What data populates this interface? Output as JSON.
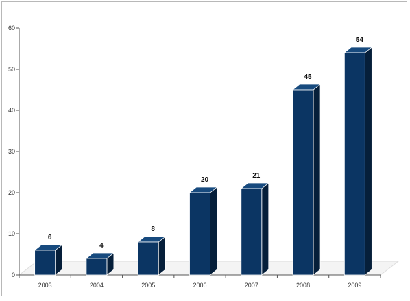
{
  "chart_data": {
    "type": "bar",
    "categories": [
      "2003",
      "2004",
      "2005",
      "2006",
      "2007",
      "2008",
      "2009"
    ],
    "values": [
      6,
      4,
      8,
      20,
      21,
      45,
      54
    ],
    "data_labels": [
      "6",
      "4",
      "8",
      "20",
      "21",
      "45",
      "54"
    ],
    "y_ticks": [
      "0",
      "10",
      "20",
      "30",
      "40",
      "50",
      "60"
    ],
    "title": "",
    "xlabel": "",
    "ylabel": "",
    "ylim": [
      0,
      60
    ],
    "grid": false,
    "legend": "none",
    "style": "3d",
    "colors": {
      "bar_front": "#0b3563",
      "bar_side": "#061f3a",
      "bar_top": "#174a7e",
      "floor": "#f4f4f4",
      "axis": "#555555"
    }
  }
}
